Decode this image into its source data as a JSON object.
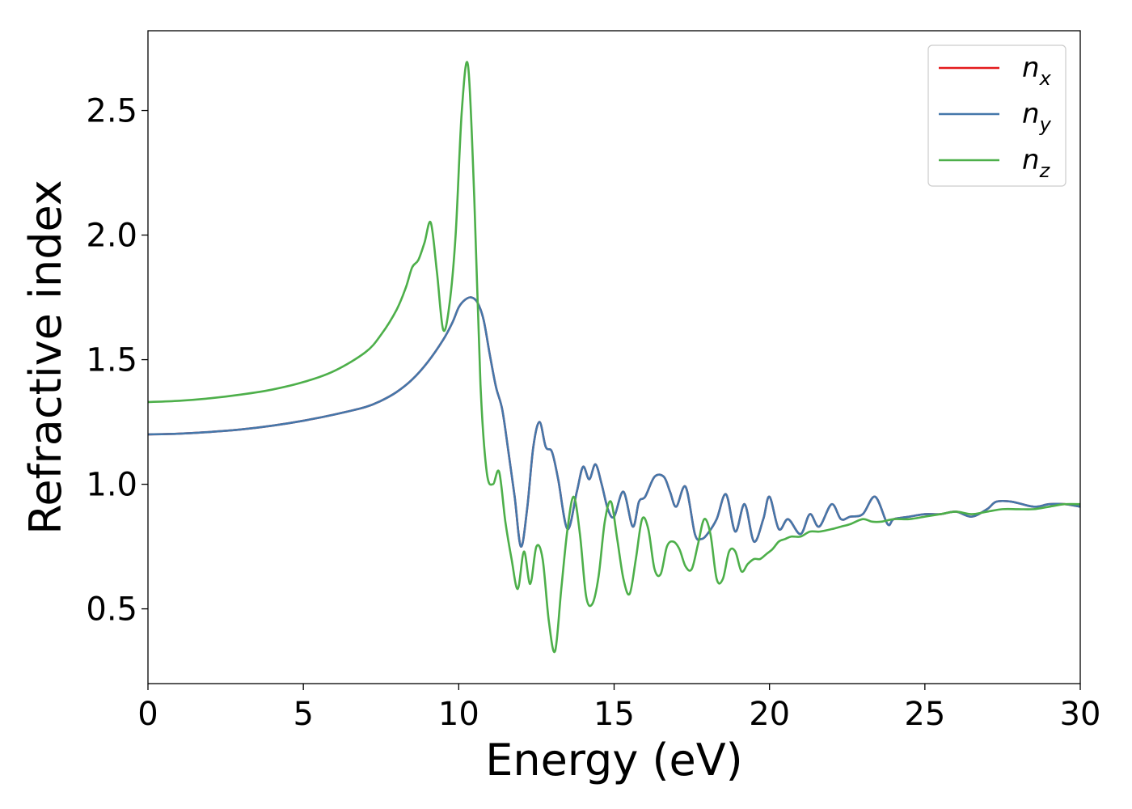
{
  "chart_data": {
    "type": "line",
    "xlabel": "Energy (eV)",
    "ylabel": "Refractive index",
    "xlim": [
      0,
      30
    ],
    "ylim": [
      0.2,
      2.82
    ],
    "xticks": [
      "0",
      "5",
      "10",
      "15",
      "20",
      "25",
      "30"
    ],
    "yticks": [
      "0.5",
      "1.0",
      "1.5",
      "2.0",
      "2.5"
    ],
    "grid": false,
    "legend": "top-right",
    "series": [
      {
        "name": "n",
        "subscript": "x",
        "color": "#e41a1c",
        "x": [
          0,
          1,
          2,
          3,
          4,
          5,
          6,
          7,
          7.5,
          8,
          8.5,
          9,
          9.5,
          9.8,
          10,
          10.2,
          10.4,
          10.6,
          10.8,
          11,
          11.2,
          11.4,
          11.6,
          11.8,
          12,
          12.2,
          12.4,
          12.6,
          12.8,
          13,
          13.2,
          13.5,
          13.8,
          14,
          14.2,
          14.4,
          14.6,
          14.8,
          15,
          15.3,
          15.6,
          15.8,
          16,
          16.3,
          16.6,
          16.8,
          17,
          17.3,
          17.6,
          17.8,
          18,
          18.3,
          18.6,
          18.9,
          19.2,
          19.5,
          19.8,
          20,
          20.3,
          20.6,
          21,
          21.3,
          21.6,
          22,
          22.3,
          22.6,
          23,
          23.4,
          23.8,
          24,
          24.5,
          25,
          25.5,
          26,
          26.5,
          27,
          27.3,
          27.8,
          28.5,
          29,
          29.5,
          30
        ],
        "y": [
          1.2,
          1.203,
          1.21,
          1.22,
          1.235,
          1.255,
          1.28,
          1.31,
          1.335,
          1.37,
          1.42,
          1.49,
          1.58,
          1.65,
          1.71,
          1.74,
          1.75,
          1.73,
          1.66,
          1.52,
          1.39,
          1.3,
          1.13,
          0.95,
          0.75,
          0.9,
          1.15,
          1.25,
          1.15,
          1.13,
          1.02,
          0.82,
          0.97,
          1.07,
          1.02,
          1.08,
          1.0,
          0.9,
          0.87,
          0.97,
          0.83,
          0.93,
          0.95,
          1.03,
          1.03,
          0.97,
          0.91,
          0.99,
          0.8,
          0.78,
          0.8,
          0.86,
          0.96,
          0.81,
          0.92,
          0.77,
          0.86,
          0.95,
          0.82,
          0.86,
          0.8,
          0.88,
          0.83,
          0.92,
          0.86,
          0.87,
          0.88,
          0.95,
          0.84,
          0.86,
          0.87,
          0.88,
          0.88,
          0.89,
          0.87,
          0.9,
          0.93,
          0.93,
          0.91,
          0.92,
          0.92,
          0.91
        ]
      },
      {
        "name": "n",
        "subscript": "y",
        "color": "#4477aa",
        "x": [
          0,
          1,
          2,
          3,
          4,
          5,
          6,
          7,
          7.5,
          8,
          8.5,
          9,
          9.5,
          9.8,
          10,
          10.2,
          10.4,
          10.6,
          10.8,
          11,
          11.2,
          11.4,
          11.6,
          11.8,
          12,
          12.2,
          12.4,
          12.6,
          12.8,
          13,
          13.2,
          13.5,
          13.8,
          14,
          14.2,
          14.4,
          14.6,
          14.8,
          15,
          15.3,
          15.6,
          15.8,
          16,
          16.3,
          16.6,
          16.8,
          17,
          17.3,
          17.6,
          17.8,
          18,
          18.3,
          18.6,
          18.9,
          19.2,
          19.5,
          19.8,
          20,
          20.3,
          20.6,
          21,
          21.3,
          21.6,
          22,
          22.3,
          22.6,
          23,
          23.4,
          23.8,
          24,
          24.5,
          25,
          25.5,
          26,
          26.5,
          27,
          27.3,
          27.8,
          28.5,
          29,
          29.5,
          30
        ],
        "y": [
          1.2,
          1.203,
          1.21,
          1.22,
          1.235,
          1.255,
          1.28,
          1.31,
          1.335,
          1.37,
          1.42,
          1.49,
          1.58,
          1.65,
          1.71,
          1.74,
          1.75,
          1.73,
          1.66,
          1.52,
          1.39,
          1.3,
          1.13,
          0.95,
          0.75,
          0.9,
          1.15,
          1.25,
          1.15,
          1.13,
          1.02,
          0.82,
          0.97,
          1.07,
          1.02,
          1.08,
          1.0,
          0.9,
          0.87,
          0.97,
          0.83,
          0.93,
          0.95,
          1.03,
          1.03,
          0.97,
          0.91,
          0.99,
          0.8,
          0.78,
          0.8,
          0.86,
          0.96,
          0.81,
          0.92,
          0.77,
          0.86,
          0.95,
          0.82,
          0.86,
          0.8,
          0.88,
          0.83,
          0.92,
          0.86,
          0.87,
          0.88,
          0.95,
          0.84,
          0.86,
          0.87,
          0.88,
          0.88,
          0.89,
          0.87,
          0.9,
          0.93,
          0.93,
          0.91,
          0.92,
          0.92,
          0.91
        ]
      },
      {
        "name": "n",
        "subscript": "z",
        "color": "#4daf4a",
        "x": [
          0,
          1,
          2,
          3,
          4,
          5,
          6,
          7,
          7.5,
          8,
          8.3,
          8.5,
          8.7,
          8.9,
          9.1,
          9.3,
          9.5,
          9.7,
          9.9,
          10.1,
          10.3,
          10.5,
          10.7,
          10.9,
          11.1,
          11.3,
          11.5,
          11.7,
          11.9,
          12.1,
          12.3,
          12.5,
          12.7,
          12.9,
          13.1,
          13.3,
          13.5,
          13.7,
          13.9,
          14.1,
          14.3,
          14.5,
          14.7,
          14.9,
          15.1,
          15.3,
          15.5,
          15.7,
          15.9,
          16.1,
          16.3,
          16.5,
          16.7,
          16.9,
          17.1,
          17.3,
          17.5,
          17.7,
          17.9,
          18.1,
          18.3,
          18.5,
          18.7,
          18.9,
          19.1,
          19.3,
          19.5,
          19.7,
          19.9,
          20.1,
          20.3,
          20.5,
          20.7,
          21,
          21.3,
          21.6,
          22,
          22.3,
          22.6,
          23,
          23.3,
          23.6,
          24,
          24.5,
          25,
          25.5,
          26,
          26.5,
          27,
          27.5,
          28,
          28.5,
          29,
          29.5,
          30
        ],
        "y": [
          1.33,
          1.335,
          1.345,
          1.36,
          1.38,
          1.41,
          1.455,
          1.53,
          1.6,
          1.7,
          1.79,
          1.87,
          1.9,
          1.97,
          2.05,
          1.85,
          1.62,
          1.72,
          2.0,
          2.5,
          2.68,
          2.15,
          1.4,
          1.05,
          1.0,
          1.05,
          0.85,
          0.7,
          0.58,
          0.73,
          0.6,
          0.75,
          0.7,
          0.45,
          0.33,
          0.58,
          0.82,
          0.95,
          0.8,
          0.55,
          0.52,
          0.63,
          0.85,
          0.93,
          0.78,
          0.62,
          0.56,
          0.7,
          0.86,
          0.82,
          0.66,
          0.64,
          0.75,
          0.77,
          0.74,
          0.67,
          0.66,
          0.76,
          0.86,
          0.8,
          0.62,
          0.62,
          0.73,
          0.73,
          0.65,
          0.68,
          0.7,
          0.7,
          0.72,
          0.74,
          0.77,
          0.78,
          0.79,
          0.79,
          0.81,
          0.81,
          0.82,
          0.83,
          0.84,
          0.86,
          0.85,
          0.85,
          0.86,
          0.86,
          0.87,
          0.88,
          0.89,
          0.88,
          0.89,
          0.9,
          0.9,
          0.9,
          0.91,
          0.92,
          0.92
        ]
      }
    ]
  }
}
